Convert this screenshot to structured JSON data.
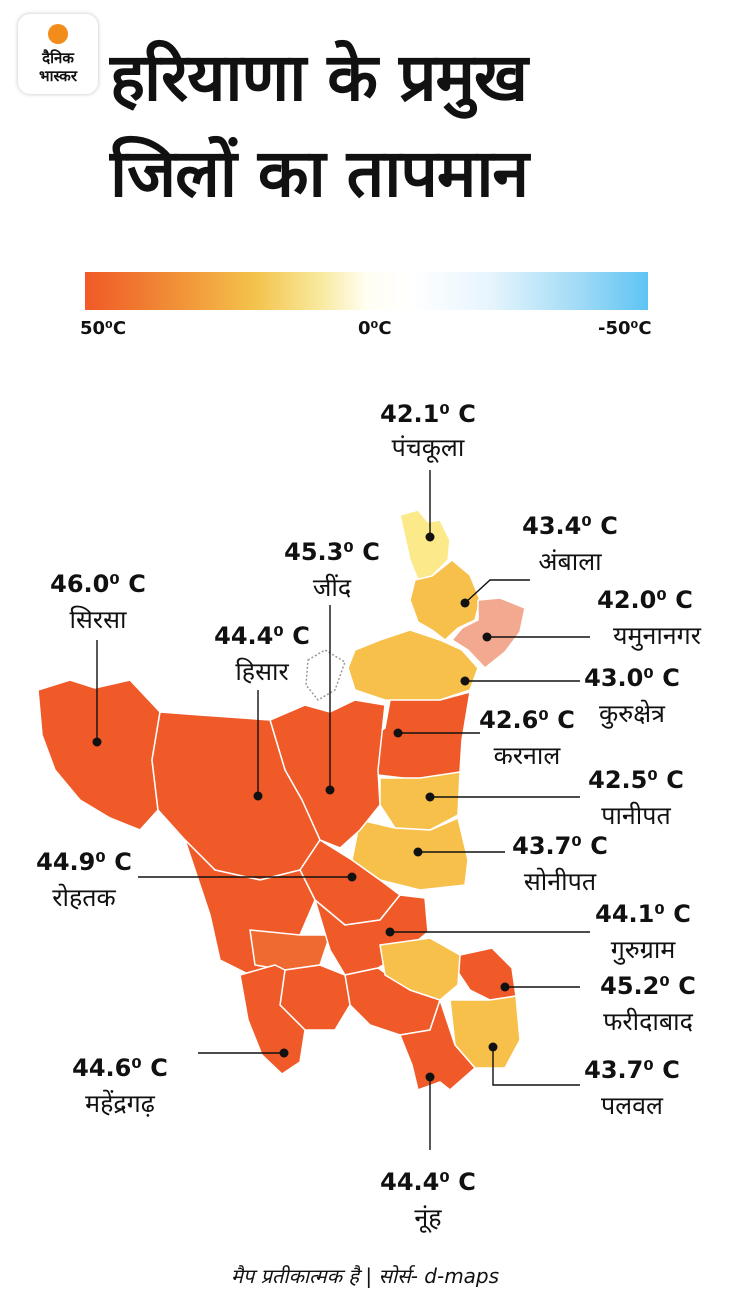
{
  "logo": {
    "line1": "दैनिक",
    "line2": "भास्कर"
  },
  "title": {
    "line1": "हरियाणा के प्रमुख",
    "line2": "जिलों का तापमान"
  },
  "scale": {
    "left": "50⁰C",
    "mid": "0⁰C",
    "right": "-50⁰C"
  },
  "colors": {
    "hot": "#f05a28",
    "warm": "#f7c04a",
    "mild": "#fbe98a",
    "cool": "#f3a98f"
  },
  "districts": [
    {
      "id": "panchkula",
      "name": "पंचकूला",
      "temp": "42.1⁰ C"
    },
    {
      "id": "ambala",
      "name": "अंबाला",
      "temp": "43.4⁰ C"
    },
    {
      "id": "jind",
      "name": "जींद",
      "temp": "45.3⁰ C"
    },
    {
      "id": "sirsa",
      "name": "सिरसा",
      "temp": "46.0⁰ C"
    },
    {
      "id": "hisar",
      "name": "हिसार",
      "temp": "44.4⁰ C"
    },
    {
      "id": "yamunanagar",
      "name": "यमुनानगर",
      "temp": "42.0⁰ C"
    },
    {
      "id": "kurukshetra",
      "name": "कुरुक्षेत्र",
      "temp": "43.0⁰ C"
    },
    {
      "id": "karnal",
      "name": "करनाल",
      "temp": "42.6⁰ C"
    },
    {
      "id": "panipat",
      "name": "पानीपत",
      "temp": "42.5⁰ C"
    },
    {
      "id": "sonipat",
      "name": "सोनीपत",
      "temp": "43.7⁰ C"
    },
    {
      "id": "rohtak",
      "name": "रोहतक",
      "temp": "44.9⁰ C"
    },
    {
      "id": "gurugram",
      "name": "गुरुग्राम",
      "temp": "44.1⁰ C"
    },
    {
      "id": "faridabad",
      "name": "फरीदाबाद",
      "temp": "45.2⁰ C"
    },
    {
      "id": "palwal",
      "name": "पलवल",
      "temp": "43.7⁰ C"
    },
    {
      "id": "mahendragarh",
      "name": "महेंद्रगढ़",
      "temp": "44.6⁰ C"
    },
    {
      "id": "nuh",
      "name": "नूंह",
      "temp": "44.4⁰ C"
    }
  ],
  "footer": "मैप प्रतीकात्मक है | सोर्स- d-maps"
}
